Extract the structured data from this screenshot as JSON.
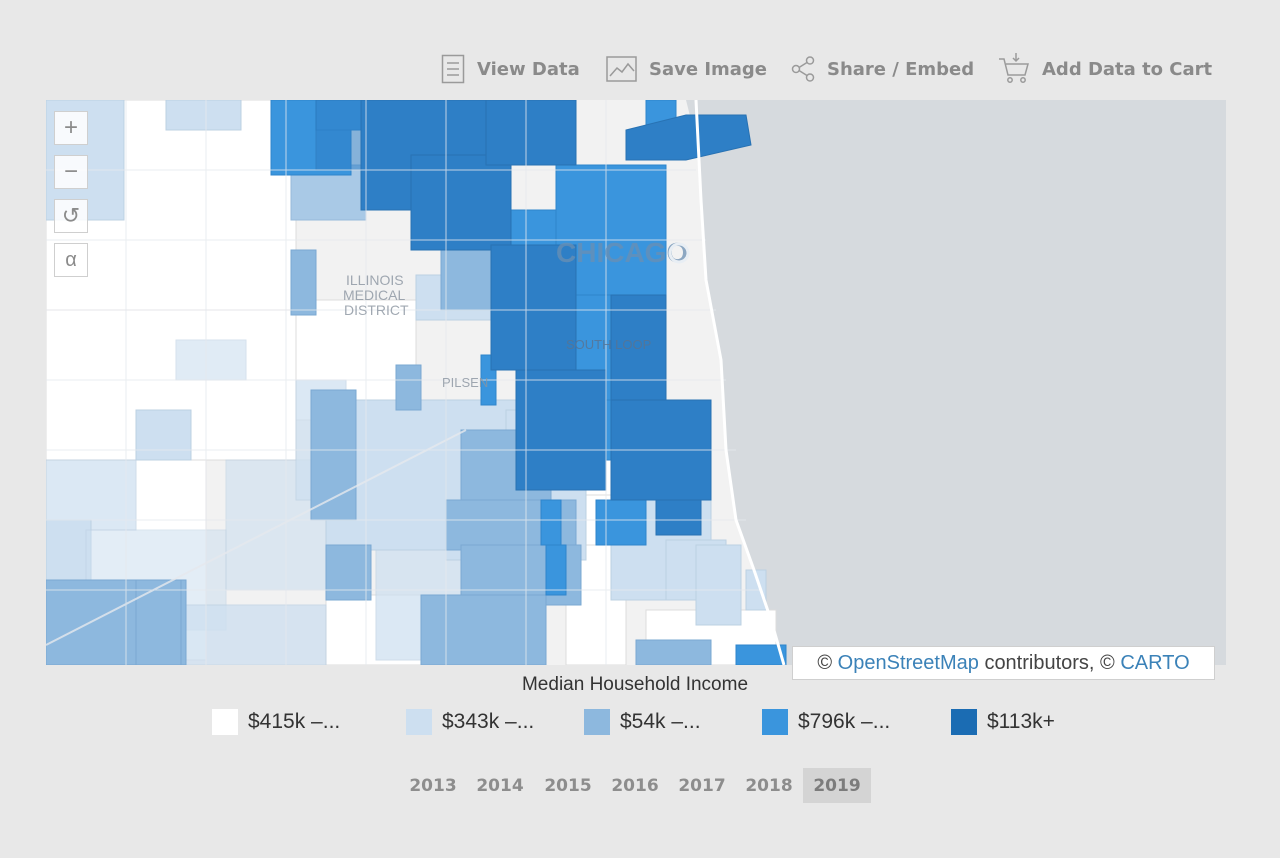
{
  "toolbar": {
    "view_data": "View Data",
    "save_image": "Save Image",
    "share_embed": "Share / Embed",
    "add_to_cart": "Add Data to Cart"
  },
  "map": {
    "zoom_in": "+",
    "zoom_out": "−",
    "reset": "↺",
    "select": "α",
    "labels": {
      "chicago": "CHICAGO",
      "illinois_medical_district": [
        "ILLINOIS",
        "MEDICAL",
        "DISTRICT"
      ],
      "south_loop": "SOUTH LOOP",
      "pilsen": "PILSEN"
    },
    "attribution": {
      "prefix": "©",
      "osm": "OpenStreetMap",
      "contributors": "contributors, ©",
      "carto": "CARTO"
    }
  },
  "legend": {
    "title": "Median Household Income",
    "items": [
      {
        "label": "$415k –...",
        "color": "#ffffff"
      },
      {
        "label": "$343k –...",
        "color": "#cddff0"
      },
      {
        "label": "$54k –...",
        "color": "#8db8de"
      },
      {
        "label": "$796k –...",
        "color": "#3a95dd"
      },
      {
        "label": "$113k+",
        "color": "#1b6cb3"
      }
    ]
  },
  "years": {
    "options": [
      "2013",
      "2014",
      "2015",
      "2016",
      "2017",
      "2018",
      "2019"
    ],
    "selected": "2019"
  },
  "colors": {
    "water": "#d6dade",
    "background": "#e8e8e8",
    "accent_link": "#3b82b8"
  }
}
